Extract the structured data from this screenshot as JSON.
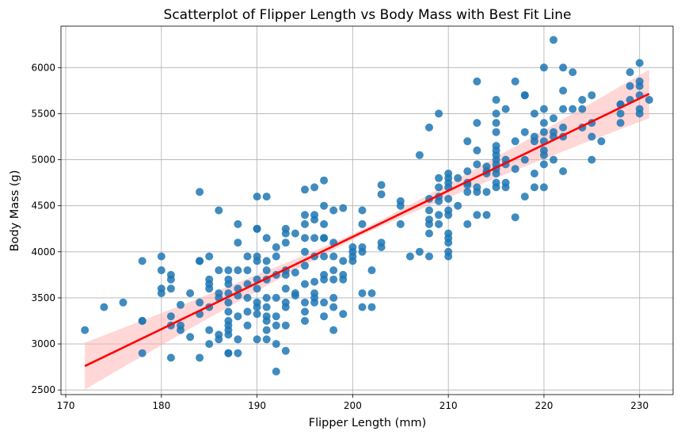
{
  "chart_data": {
    "type": "scatter",
    "title": "Scatterplot of Flipper Length vs Body Mass with Best Fit Line",
    "xlabel": "Flipper Length (mm)",
    "ylabel": "Body Mass (g)",
    "xlim": [
      169.5,
      233.5
    ],
    "ylim": [
      2450,
      6450
    ],
    "xticks": [
      170,
      180,
      190,
      200,
      210,
      220,
      230
    ],
    "yticks": [
      2500,
      3000,
      3500,
      4000,
      4500,
      5000,
      5500,
      6000
    ],
    "grid": true,
    "colors": {
      "points": "#1f77b4",
      "line": "#ff0000",
      "ci_band": "#ffb6b6"
    },
    "fit_line": {
      "x": [
        172,
        231
      ],
      "y": [
        2760,
        5715
      ]
    },
    "points": [
      [
        172,
        3150
      ],
      [
        174,
        3400
      ],
      [
        176,
        3450
      ],
      [
        178,
        3250
      ],
      [
        178,
        3250
      ],
      [
        178,
        3900
      ],
      [
        178,
        2900
      ],
      [
        180,
        3950
      ],
      [
        180,
        3800
      ],
      [
        180,
        3600
      ],
      [
        180,
        3550
      ],
      [
        181,
        3750
      ],
      [
        181,
        3700
      ],
      [
        181,
        3600
      ],
      [
        181,
        3300
      ],
      [
        181,
        3200
      ],
      [
        181,
        2850
      ],
      [
        182,
        3425
      ],
      [
        182,
        3200
      ],
      [
        182,
        3150
      ],
      [
        183,
        3550
      ],
      [
        183,
        3075
      ],
      [
        184,
        4650
      ],
      [
        184,
        3900
      ],
      [
        184,
        3900
      ],
      [
        184,
        3450
      ],
      [
        184,
        3325
      ],
      [
        184,
        2850
      ],
      [
        185,
        3950
      ],
      [
        185,
        3700
      ],
      [
        185,
        3650
      ],
      [
        185,
        3600
      ],
      [
        185,
        3400
      ],
      [
        185,
        3150
      ],
      [
        185,
        3000
      ],
      [
        186,
        4450
      ],
      [
        186,
        3800
      ],
      [
        186,
        3550
      ],
      [
        186,
        3500
      ],
      [
        186,
        3100
      ],
      [
        186,
        3050
      ],
      [
        187,
        3800
      ],
      [
        187,
        3700
      ],
      [
        187,
        3650
      ],
      [
        187,
        3550
      ],
      [
        187,
        3450
      ],
      [
        187,
        3350
      ],
      [
        187,
        3250
      ],
      [
        187,
        3200
      ],
      [
        187,
        3150
      ],
      [
        187,
        3100
      ],
      [
        187,
        2900
      ],
      [
        187,
        2900
      ],
      [
        188,
        4300
      ],
      [
        188,
        4100
      ],
      [
        188,
        3800
      ],
      [
        188,
        3600
      ],
      [
        188,
        3525
      ],
      [
        188,
        3300
      ],
      [
        188,
        3050
      ],
      [
        188,
        2900
      ],
      [
        189,
        3950
      ],
      [
        189,
        3800
      ],
      [
        189,
        3650
      ],
      [
        189,
        3500
      ],
      [
        189,
        3350
      ],
      [
        189,
        3200
      ],
      [
        190,
        4600
      ],
      [
        190,
        4250
      ],
      [
        190,
        4250
      ],
      [
        190,
        3950
      ],
      [
        190,
        3900
      ],
      [
        190,
        3700
      ],
      [
        190,
        3600
      ],
      [
        190,
        3450
      ],
      [
        190,
        3400
      ],
      [
        190,
        3325
      ],
      [
        190,
        3050
      ],
      [
        191,
        4600
      ],
      [
        191,
        4150
      ],
      [
        191,
        3900
      ],
      [
        191,
        3800
      ],
      [
        191,
        3700
      ],
      [
        191,
        3500
      ],
      [
        191,
        3400
      ],
      [
        191,
        3300
      ],
      [
        191,
        3250
      ],
      [
        191,
        3150
      ],
      [
        191,
        3050
      ],
      [
        192,
        4050
      ],
      [
        192,
        3950
      ],
      [
        192,
        3750
      ],
      [
        192,
        3500
      ],
      [
        192,
        3300
      ],
      [
        192,
        3200
      ],
      [
        192,
        3000
      ],
      [
        192,
        2700
      ],
      [
        193,
        4250
      ],
      [
        193,
        4200
      ],
      [
        193,
        4100
      ],
      [
        193,
        3800
      ],
      [
        193,
        3750
      ],
      [
        193,
        3600
      ],
      [
        193,
        3450
      ],
      [
        193,
        3400
      ],
      [
        193,
        3200
      ],
      [
        193,
        2925
      ],
      [
        194,
        4200
      ],
      [
        194,
        3775
      ],
      [
        194,
        3550
      ],
      [
        194,
        3525
      ],
      [
        195,
        4675
      ],
      [
        195,
        4400
      ],
      [
        195,
        4300
      ],
      [
        195,
        4150
      ],
      [
        195,
        4000
      ],
      [
        195,
        3850
      ],
      [
        195,
        3650
      ],
      [
        195,
        3450
      ],
      [
        195,
        3350
      ],
      [
        195,
        3250
      ],
      [
        196,
        4700
      ],
      [
        196,
        4400
      ],
      [
        196,
        4350
      ],
      [
        196,
        4150
      ],
      [
        196,
        3950
      ],
      [
        196,
        3675
      ],
      [
        196,
        3550
      ],
      [
        196,
        3500
      ],
      [
        196,
        3450
      ],
      [
        197,
        4775
      ],
      [
        197,
        4500
      ],
      [
        197,
        4300
      ],
      [
        197,
        4150
      ],
      [
        197,
        4150
      ],
      [
        197,
        3950
      ],
      [
        197,
        3750
      ],
      [
        197,
        3700
      ],
      [
        197,
        3450
      ],
      [
        197,
        3300
      ],
      [
        198,
        4450
      ],
      [
        198,
        4100
      ],
      [
        198,
        3950
      ],
      [
        198,
        3800
      ],
      [
        198,
        3700
      ],
      [
        198,
        3500
      ],
      [
        198,
        3400
      ],
      [
        198,
        3150
      ],
      [
        199,
        4475
      ],
      [
        199,
        3900
      ],
      [
        199,
        3750
      ],
      [
        199,
        3700
      ],
      [
        199,
        3325
      ],
      [
        200,
        4050
      ],
      [
        200,
        4000
      ],
      [
        200,
        3950
      ],
      [
        200,
        3900
      ],
      [
        201,
        4450
      ],
      [
        201,
        4300
      ],
      [
        201,
        4050
      ],
      [
        201,
        4000
      ],
      [
        201,
        3550
      ],
      [
        201,
        3400
      ],
      [
        202,
        3800
      ],
      [
        202,
        3550
      ],
      [
        202,
        3400
      ],
      [
        203,
        4725
      ],
      [
        203,
        4625
      ],
      [
        203,
        4100
      ],
      [
        203,
        4050
      ],
      [
        205,
        4550
      ],
      [
        205,
        4500
      ],
      [
        205,
        4300
      ],
      [
        206,
        3950
      ],
      [
        207,
        5050
      ],
      [
        207,
        4000
      ],
      [
        208,
        5350
      ],
      [
        208,
        4575
      ],
      [
        208,
        4450
      ],
      [
        208,
        4350
      ],
      [
        208,
        4300
      ],
      [
        208,
        4200
      ],
      [
        208,
        3950
      ],
      [
        209,
        5500
      ],
      [
        209,
        4800
      ],
      [
        209,
        4700
      ],
      [
        209,
        4600
      ],
      [
        209,
        4550
      ],
      [
        209,
        4400
      ],
      [
        209,
        4300
      ],
      [
        210,
        4850
      ],
      [
        210,
        4800
      ],
      [
        210,
        4750
      ],
      [
        210,
        4700
      ],
      [
        210,
        4575
      ],
      [
        210,
        4450
      ],
      [
        210,
        4400
      ],
      [
        210,
        4200
      ],
      [
        210,
        4150
      ],
      [
        210,
        4100
      ],
      [
        210,
        4000
      ],
      [
        210,
        3950
      ],
      [
        211,
        4800
      ],
      [
        211,
        4500
      ],
      [
        212,
        5200
      ],
      [
        212,
        4875
      ],
      [
        212,
        4750
      ],
      [
        212,
        4725
      ],
      [
        212,
        4650
      ],
      [
        212,
        4300
      ],
      [
        213,
        5850
      ],
      [
        213,
        5400
      ],
      [
        213,
        5100
      ],
      [
        213,
        4950
      ],
      [
        213,
        4700
      ],
      [
        213,
        4650
      ],
      [
        213,
        4400
      ],
      [
        214,
        4925
      ],
      [
        214,
        4875
      ],
      [
        214,
        4850
      ],
      [
        214,
        4650
      ],
      [
        214,
        4400
      ],
      [
        215,
        5650
      ],
      [
        215,
        5500
      ],
      [
        215,
        5400
      ],
      [
        215,
        5300
      ],
      [
        215,
        5150
      ],
      [
        215,
        5100
      ],
      [
        215,
        5050
      ],
      [
        215,
        5000
      ],
      [
        215,
        4950
      ],
      [
        215,
        4900
      ],
      [
        215,
        4850
      ],
      [
        215,
        4750
      ],
      [
        215,
        4700
      ],
      [
        216,
        5550
      ],
      [
        216,
        5000
      ],
      [
        216,
        4950
      ],
      [
        216,
        4750
      ],
      [
        216,
        4700
      ],
      [
        217,
        5850
      ],
      [
        217,
        5200
      ],
      [
        217,
        4900
      ],
      [
        217,
        4375
      ],
      [
        218,
        5700
      ],
      [
        218,
        5700
      ],
      [
        218,
        5300
      ],
      [
        218,
        5000
      ],
      [
        218,
        4600
      ],
      [
        219,
        5500
      ],
      [
        219,
        5250
      ],
      [
        219,
        5200
      ],
      [
        219,
        4850
      ],
      [
        219,
        4700
      ],
      [
        220,
        6000
      ],
      [
        220,
        5550
      ],
      [
        220,
        5400
      ],
      [
        220,
        5300
      ],
      [
        220,
        5200
      ],
      [
        220,
        5100
      ],
      [
        220,
        5050
      ],
      [
        220,
        4950
      ],
      [
        220,
        4700
      ],
      [
        221,
        6300
      ],
      [
        221,
        5450
      ],
      [
        221,
        5300
      ],
      [
        221,
        5250
      ],
      [
        221,
        5000
      ],
      [
        222,
        6000
      ],
      [
        222,
        5750
      ],
      [
        222,
        5550
      ],
      [
        222,
        5350
      ],
      [
        222,
        5250
      ],
      [
        222,
        4875
      ],
      [
        223,
        5950
      ],
      [
        223,
        5550
      ],
      [
        224,
        5650
      ],
      [
        224,
        5550
      ],
      [
        224,
        5350
      ],
      [
        225,
        5700
      ],
      [
        225,
        5400
      ],
      [
        225,
        5250
      ],
      [
        225,
        5000
      ],
      [
        226,
        5200
      ],
      [
        228,
        5600
      ],
      [
        228,
        5600
      ],
      [
        228,
        5500
      ],
      [
        228,
        5400
      ],
      [
        229,
        5950
      ],
      [
        229,
        5800
      ],
      [
        229,
        5650
      ],
      [
        230,
        6050
      ],
      [
        230,
        5850
      ],
      [
        230,
        5800
      ],
      [
        230,
        5700
      ],
      [
        230,
        5550
      ],
      [
        230,
        5500
      ],
      [
        231,
        5650
      ]
    ]
  }
}
